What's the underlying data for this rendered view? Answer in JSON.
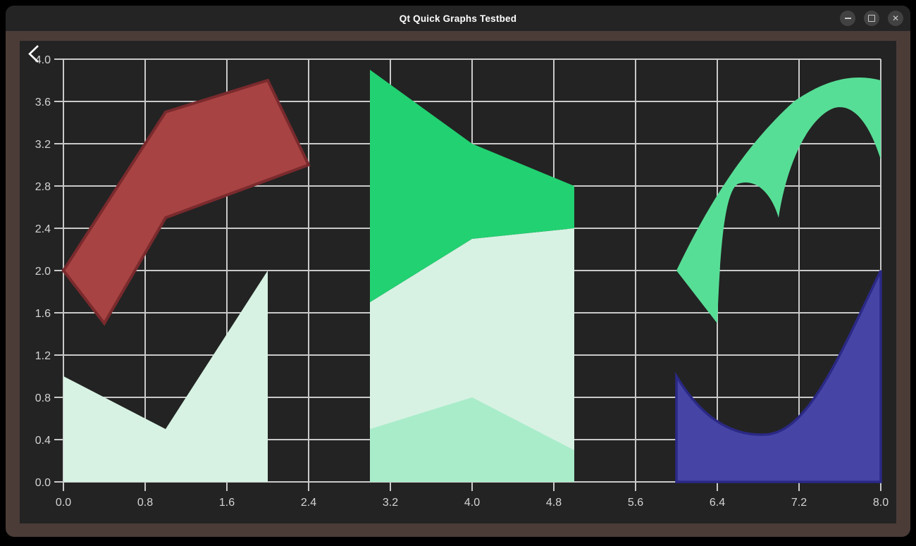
{
  "window": {
    "title": "Qt Quick Graphs Testbed",
    "controls": {
      "minimize_icon": "minus-bar",
      "maximize_icon": "square-outline",
      "close_glyph": "✕"
    },
    "back_icon": "chevron-left"
  },
  "chart_data": {
    "type": "area",
    "title": "",
    "xlabel": "",
    "ylabel": "",
    "xlim": [
      0,
      8
    ],
    "ylim": [
      0,
      4
    ],
    "x_ticks": [
      0.0,
      0.8,
      1.6,
      2.4,
      3.2,
      4.0,
      4.8,
      5.6,
      6.4,
      7.2,
      8.0
    ],
    "y_ticks": [
      0.0,
      0.4,
      0.8,
      1.2,
      1.6,
      2.0,
      2.4,
      2.8,
      3.2,
      3.6,
      4.0
    ],
    "tick_decimals": 1,
    "grid": true,
    "grid_color": "#c9c9c9",
    "tick_label_color": "#d4d4d4",
    "plot_background": "#232323",
    "legend": "none",
    "series": [
      {
        "name": "area-light-mint-left",
        "kind": "area",
        "fill": "#d7f2e3",
        "upper": [
          [
            0.0,
            1.0
          ],
          [
            1.0,
            0.5
          ],
          [
            2.0,
            2.0
          ]
        ],
        "baseline": 0
      },
      {
        "name": "area-light-mint-middle",
        "kind": "area",
        "fill": "#d7f2e3",
        "upper": [
          [
            3.0,
            1.7
          ],
          [
            4.0,
            2.3
          ],
          [
            5.0,
            2.4
          ]
        ],
        "baseline": 0
      },
      {
        "name": "area-medium-mint-middle",
        "kind": "area",
        "fill": "#a9ecca",
        "upper": [
          [
            3.0,
            0.5
          ],
          [
            4.0,
            0.8
          ],
          [
            5.0,
            0.3
          ]
        ],
        "baseline": 0
      },
      {
        "name": "area-green-middle",
        "kind": "area",
        "fill": "#22d171",
        "upper": [
          [
            3.0,
            3.9
          ],
          [
            4.0,
            3.2
          ],
          [
            5.0,
            2.8
          ]
        ],
        "lower": [
          [
            3.0,
            1.7
          ],
          [
            4.0,
            2.3
          ],
          [
            5.0,
            2.4
          ]
        ]
      },
      {
        "name": "area-red-polygon",
        "kind": "area",
        "fill": "#a84343",
        "stroke": "#7a2a2d",
        "stroke_width": 4,
        "upper": [
          [
            0.0,
            2.0
          ],
          [
            1.0,
            3.5
          ],
          [
            2.0,
            3.8
          ],
          [
            2.4,
            3.0
          ]
        ],
        "lower": [
          [
            0.0,
            2.0
          ],
          [
            0.4,
            1.5
          ],
          [
            1.0,
            2.5
          ],
          [
            2.4,
            3.0
          ]
        ]
      },
      {
        "name": "area-green-swoosh",
        "kind": "path",
        "fill": "#57de96",
        "path": [
          [
            "M",
            6.0,
            2.0
          ],
          [
            "C",
            6.25,
            2.5,
            6.6,
            3.12,
            7.15,
            3.6
          ],
          [
            "C",
            7.45,
            3.8,
            7.72,
            3.87,
            8.0,
            3.8
          ],
          [
            "L",
            8.0,
            3.05
          ],
          [
            "C",
            7.88,
            3.42,
            7.72,
            3.58,
            7.55,
            3.54
          ],
          [
            "C",
            7.3,
            3.46,
            7.08,
            3.02,
            7.0,
            2.5
          ],
          [
            "C",
            6.93,
            2.73,
            6.78,
            2.88,
            6.6,
            2.82
          ],
          [
            "C",
            6.48,
            2.74,
            6.43,
            2.3,
            6.4,
            1.5
          ],
          [
            "Z"
          ]
        ]
      },
      {
        "name": "area-blue",
        "kind": "path",
        "fill": "#4645a6",
        "stroke": "#2b2985",
        "stroke_width": 3.5,
        "path": [
          [
            "M",
            6.0,
            1.0
          ],
          [
            "C",
            6.25,
            0.6,
            6.55,
            0.42,
            6.9,
            0.45
          ],
          [
            "C",
            7.3,
            0.5,
            7.6,
            1.2,
            8.0,
            2.0
          ],
          [
            "L",
            8.0,
            0.0
          ],
          [
            "L",
            6.0,
            0.0
          ],
          [
            "Z"
          ]
        ]
      }
    ]
  }
}
